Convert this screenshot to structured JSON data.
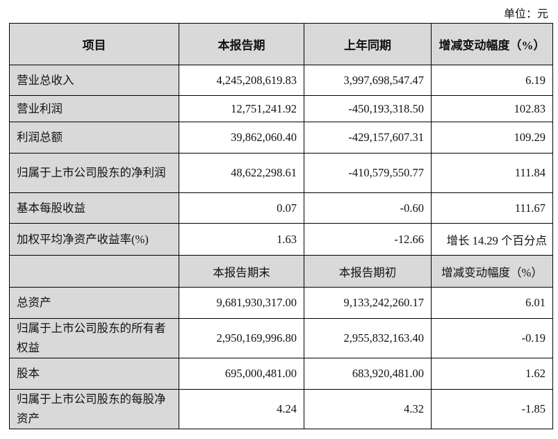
{
  "unit_label": "单位：元",
  "header": [
    "项目",
    "本报告期",
    "上年同期",
    "增减变动幅度（%）"
  ],
  "rows_a": [
    {
      "item": "营业总收入",
      "current": "4,245,208,619.83",
      "prior": "3,997,698,547.47",
      "change": "6.19"
    },
    {
      "item": "营业利润",
      "current": "12,751,241.92",
      "prior": "-450,193,318.50",
      "change": "102.83"
    },
    {
      "item": "利润总额",
      "current": "39,862,060.40",
      "prior": "-429,157,607.31",
      "change": "109.29"
    },
    {
      "item": "归属于上市公司股东的净利润",
      "current": "48,622,298.61",
      "prior": "-410,579,550.77",
      "change": "111.84"
    },
    {
      "item": "基本每股收益",
      "current": "0.07",
      "prior": "-0.60",
      "change": "111.67"
    },
    {
      "item": "加权平均净资产收益率(%)",
      "current": "1.63",
      "prior": "-12.66",
      "change": "增长 14.29 个百分点"
    }
  ],
  "subheader": [
    "",
    "本报告期末",
    "本报告期初",
    "增减变动幅度（%）"
  ],
  "rows_b": [
    {
      "item": "总资产",
      "current": "9,681,930,317.00",
      "prior": "9,133,242,260.17",
      "change": "6.01"
    },
    {
      "item": "归属于上市公司股东的所有者权益",
      "current": "2,950,169,996.80",
      "prior": "2,955,832,163.40",
      "change": "-0.19"
    },
    {
      "item": "股本",
      "current": "695,000,481.00",
      "prior": "683,920,481.00",
      "change": "1.62"
    },
    {
      "item": "归属于上市公司股东的每股净资产",
      "current": "4.24",
      "prior": "4.32",
      "change": "-1.85"
    }
  ]
}
